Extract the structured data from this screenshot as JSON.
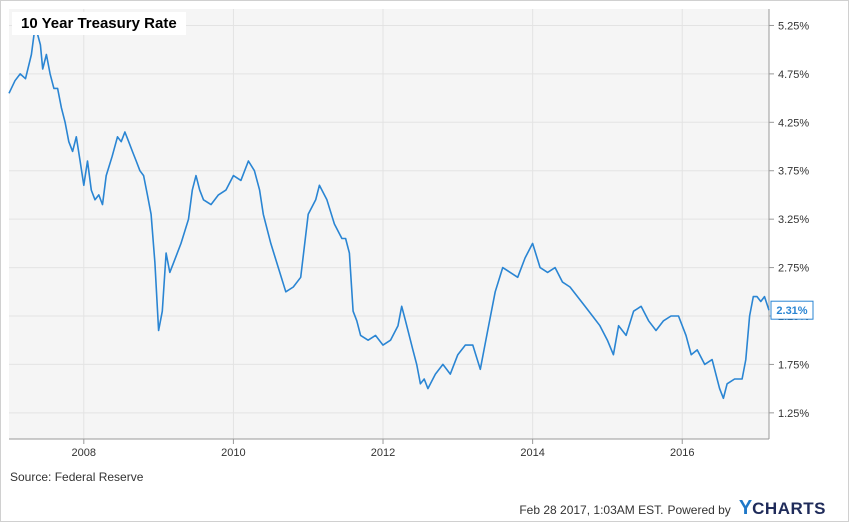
{
  "title": "10 Year Treasury Rate",
  "source": "Source: Federal Reserve",
  "footer": {
    "timestamp": "Feb 28 2017, 1:03AM EST.",
    "powered_by": "Powered by",
    "brand_y": "Y",
    "brand_rest": "CHARTS"
  },
  "colors": {
    "line": "#2a85d3",
    "plot_background": "#f5f5f5",
    "grid": "#e3e3e3",
    "axis": "#999999"
  },
  "chart_data": {
    "type": "line",
    "title": "10 Year Treasury Rate",
    "xlabel": "",
    "ylabel": "",
    "xlim": [
      2007.0,
      2017.16
    ],
    "ylim": [
      0.98,
      5.42
    ],
    "grid": true,
    "legend": "none",
    "y_axis_side": "right",
    "x_ticks": [
      2008,
      2010,
      2012,
      2014,
      2016
    ],
    "x_tick_labels": [
      "2008",
      "2010",
      "2012",
      "2014",
      "2016"
    ],
    "y_ticks": [
      1.25,
      1.75,
      2.25,
      2.75,
      3.25,
      3.75,
      4.25,
      4.75,
      5.25
    ],
    "y_tick_labels": [
      "1.25%",
      "1.75%",
      "2.25%",
      "2.75%",
      "3.25%",
      "3.75%",
      "4.25%",
      "4.75%",
      "5.25%"
    ],
    "last_value": 2.31,
    "last_value_label": "2.31%",
    "series": [
      {
        "x": [
          2007.0,
          2007.08,
          2007.15,
          2007.22,
          2007.3,
          2007.35,
          2007.42,
          2007.45,
          2007.5,
          2007.55,
          2007.6,
          2007.65,
          2007.7,
          2007.75,
          2007.8,
          2007.85,
          2007.9,
          2007.95,
          2008.0,
          2008.05,
          2008.1,
          2008.15,
          2008.2,
          2008.25,
          2008.3,
          2008.38,
          2008.45,
          2008.5,
          2008.55,
          2008.6,
          2008.65,
          2008.7,
          2008.75,
          2008.8,
          2008.85,
          2008.9,
          2008.95,
          2009.0,
          2009.05,
          2009.1,
          2009.15,
          2009.2,
          2009.3,
          2009.4,
          2009.45,
          2009.5,
          2009.55,
          2009.6,
          2009.7,
          2009.8,
          2009.9,
          2010.0,
          2010.1,
          2010.2,
          2010.28,
          2010.35,
          2010.4,
          2010.5,
          2010.6,
          2010.7,
          2010.8,
          2010.9,
          2011.0,
          2011.1,
          2011.15,
          2011.25,
          2011.35,
          2011.45,
          2011.5,
          2011.55,
          2011.6,
          2011.65,
          2011.7,
          2011.8,
          2011.9,
          2012.0,
          2012.1,
          2012.2,
          2012.25,
          2012.3,
          2012.4,
          2012.45,
          2012.5,
          2012.55,
          2012.6,
          2012.7,
          2012.8,
          2012.9,
          2013.0,
          2013.1,
          2013.2,
          2013.3,
          2013.35,
          2013.4,
          2013.5,
          2013.6,
          2013.7,
          2013.8,
          2013.9,
          2014.0,
          2014.1,
          2014.2,
          2014.3,
          2014.4,
          2014.5,
          2014.6,
          2014.7,
          2014.8,
          2014.9,
          2015.0,
          2015.08,
          2015.15,
          2015.25,
          2015.35,
          2015.45,
          2015.55,
          2015.65,
          2015.75,
          2015.85,
          2015.95,
          2016.05,
          2016.12,
          2016.2,
          2016.3,
          2016.4,
          2016.5,
          2016.55,
          2016.6,
          2016.7,
          2016.8,
          2016.85,
          2016.9,
          2016.95,
          2017.0,
          2017.05,
          2017.1,
          2017.16
        ],
        "values": [
          4.55,
          4.68,
          4.75,
          4.7,
          4.95,
          5.25,
          5.05,
          4.8,
          4.95,
          4.75,
          4.6,
          4.6,
          4.4,
          4.25,
          4.05,
          3.95,
          4.1,
          3.85,
          3.6,
          3.85,
          3.55,
          3.45,
          3.5,
          3.4,
          3.7,
          3.9,
          4.1,
          4.05,
          4.15,
          4.05,
          3.95,
          3.85,
          3.75,
          3.7,
          3.5,
          3.3,
          2.8,
          2.1,
          2.3,
          2.9,
          2.7,
          2.8,
          3.0,
          3.25,
          3.55,
          3.7,
          3.55,
          3.45,
          3.4,
          3.5,
          3.55,
          3.7,
          3.65,
          3.85,
          3.75,
          3.55,
          3.3,
          3.0,
          2.75,
          2.5,
          2.55,
          2.65,
          3.3,
          3.45,
          3.6,
          3.45,
          3.2,
          3.05,
          3.05,
          2.9,
          2.3,
          2.2,
          2.05,
          2.0,
          2.05,
          1.95,
          2.0,
          2.15,
          2.35,
          2.2,
          1.9,
          1.75,
          1.55,
          1.6,
          1.5,
          1.65,
          1.75,
          1.65,
          1.85,
          1.95,
          1.95,
          1.7,
          1.9,
          2.1,
          2.5,
          2.75,
          2.7,
          2.65,
          2.85,
          3.0,
          2.75,
          2.7,
          2.75,
          2.6,
          2.55,
          2.45,
          2.35,
          2.25,
          2.15,
          2.0,
          1.85,
          2.15,
          2.05,
          2.3,
          2.35,
          2.2,
          2.1,
          2.2,
          2.25,
          2.25,
          2.05,
          1.85,
          1.9,
          1.75,
          1.8,
          1.5,
          1.4,
          1.55,
          1.6,
          1.6,
          1.8,
          2.25,
          2.45,
          2.45,
          2.4,
          2.45,
          2.31
        ]
      }
    ]
  }
}
